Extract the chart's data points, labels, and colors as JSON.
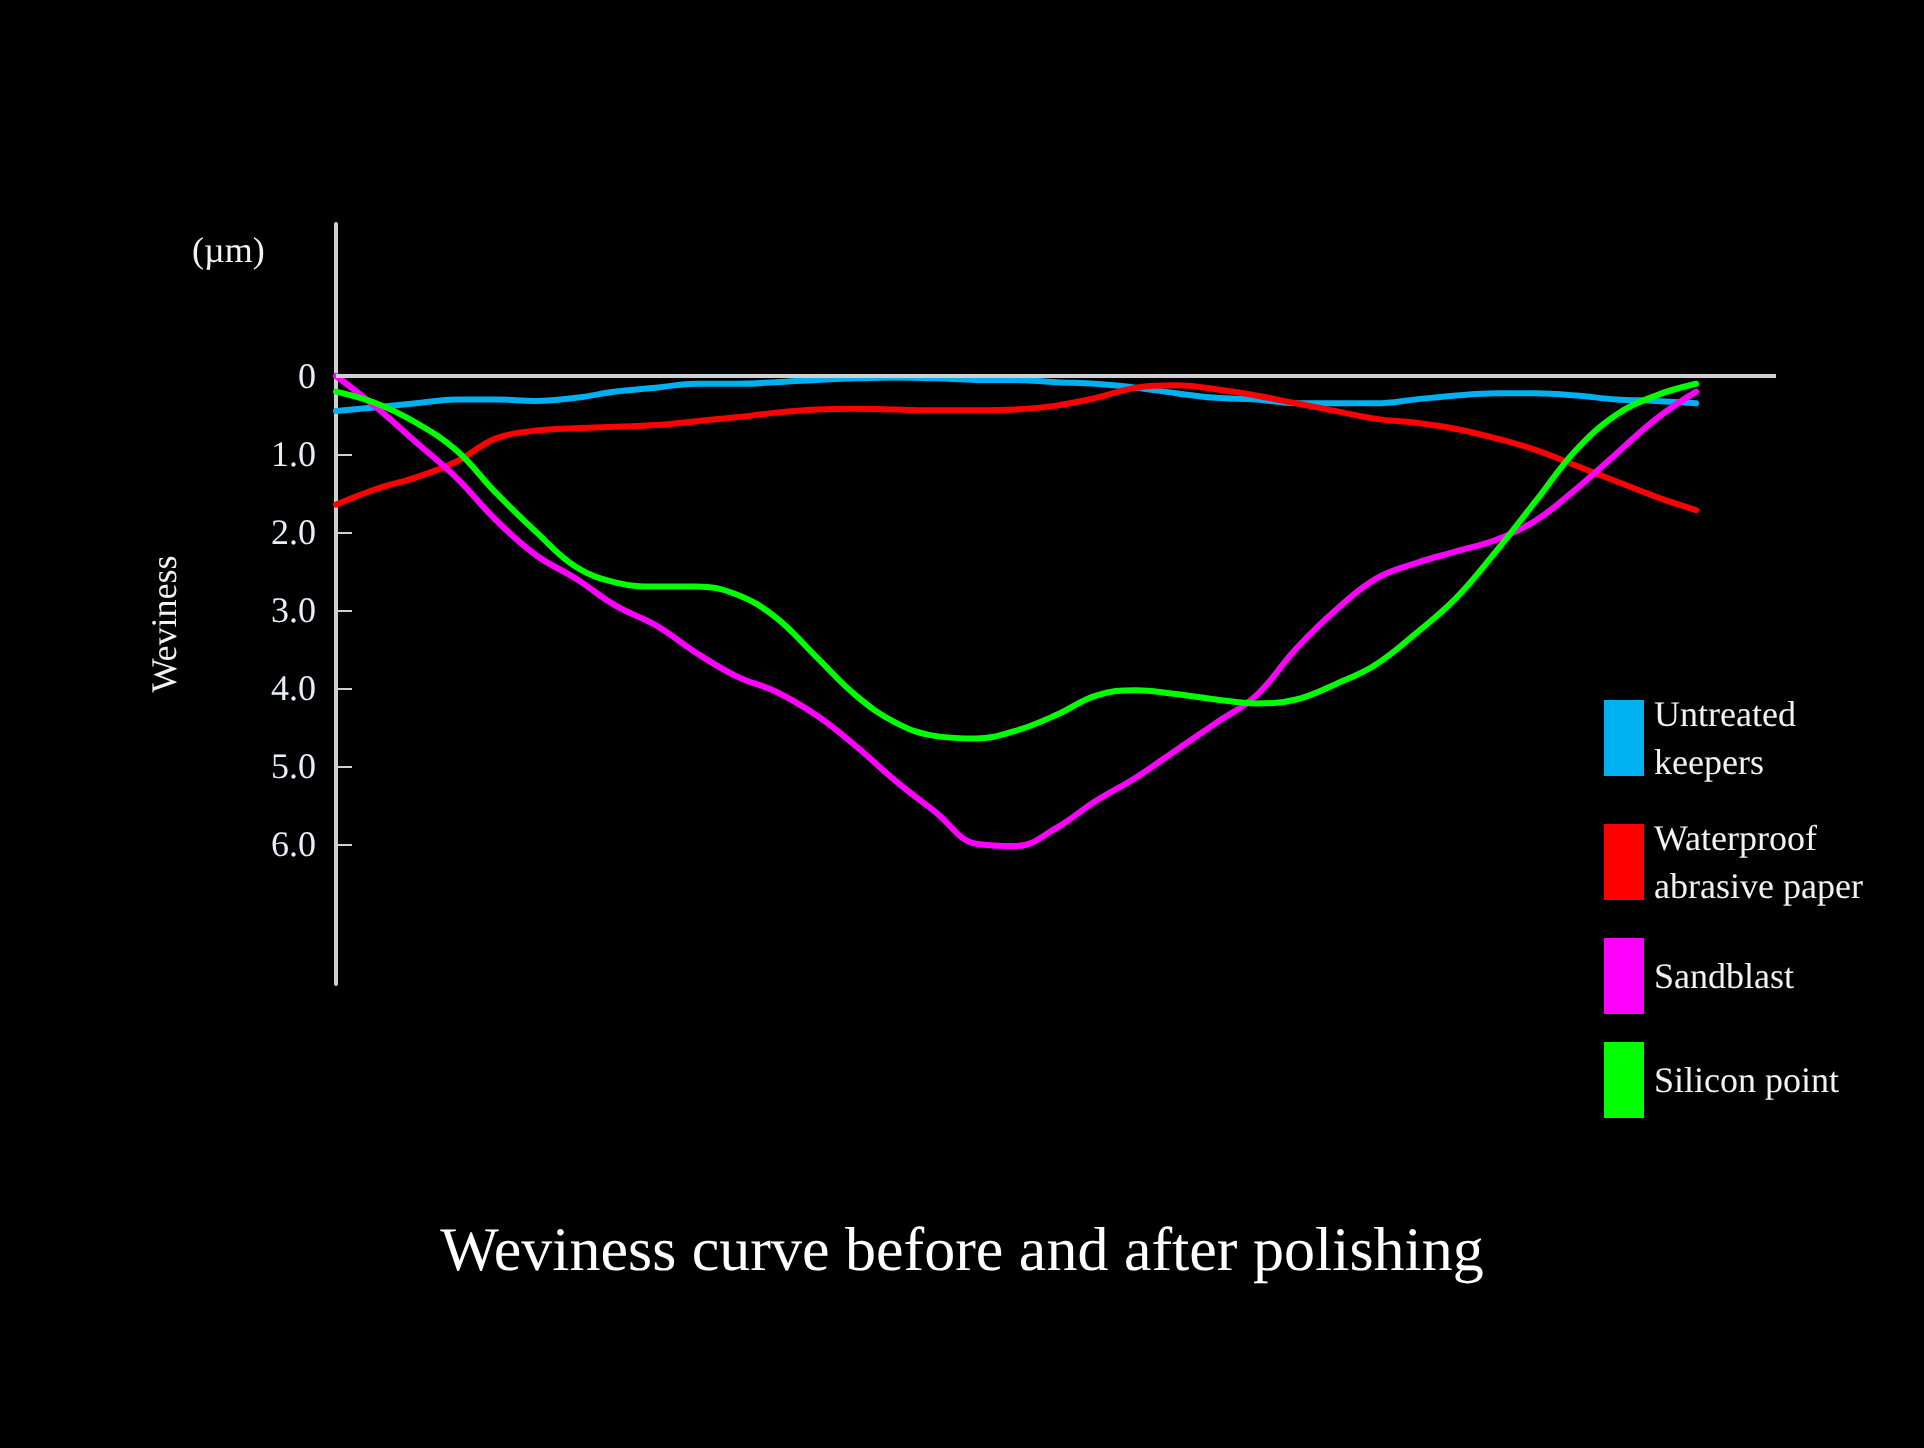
{
  "chart_data": {
    "type": "line",
    "title": "Weviness curve before and after polishing",
    "ylabel": "Weviness",
    "annotations": [
      "(µm)"
    ],
    "categories": [
      null,
      null,
      null,
      null,
      null,
      null,
      null,
      null,
      null,
      null,
      null,
      null,
      null,
      null,
      null,
      null,
      null,
      null,
      null,
      null,
      null,
      null,
      null,
      null,
      null,
      null,
      null,
      null,
      null,
      null,
      null,
      null,
      null,
      null,
      null,
      null,
      null
    ],
    "ylim": [
      7.8,
      -1.95
    ],
    "yticks": [
      0,
      {
        "value": 1,
        "label": "1.0"
      },
      {
        "value": 2,
        "label": "2.0"
      },
      {
        "value": 3,
        "label": "3.0"
      },
      {
        "value": 4,
        "label": "4.0"
      },
      {
        "value": 5,
        "label": "5.0"
      },
      {
        "value": 6,
        "label": "6.0"
      }
    ],
    "tick_labels": "y",
    "grid": false,
    "ref_lines": [
      {
        "axis": "y",
        "value": 0,
        "color": "#cfcfcf"
      }
    ],
    "legend": "right",
    "marker": "none",
    "line_style": "solid",
    "series": [
      {
        "name": "Untreated keepers",
        "color": "#00b0f0",
        "values": [
          0.45,
          0.4,
          0.35,
          0.3,
          0.3,
          0.32,
          0.28,
          0.2,
          0.15,
          0.1,
          0.1,
          0.08,
          0.05,
          0.03,
          0.02,
          0.03,
          0.05,
          0.05,
          0.08,
          0.1,
          0.15,
          0.22,
          0.28,
          0.3,
          0.35,
          0.35,
          0.35,
          0.3,
          0.25,
          0.22,
          0.22,
          0.25,
          0.3,
          0.32,
          0.35,
          null,
          null
        ]
      },
      {
        "name": "Waterproof abrasive paper",
        "color": "#ff0000",
        "values": [
          1.65,
          1.45,
          1.3,
          1.1,
          0.8,
          0.7,
          0.67,
          0.65,
          0.63,
          0.58,
          0.53,
          0.47,
          0.43,
          0.42,
          0.43,
          0.44,
          0.44,
          0.43,
          0.38,
          0.28,
          0.15,
          0.12,
          0.17,
          0.25,
          0.35,
          0.45,
          0.55,
          0.6,
          0.68,
          0.8,
          0.95,
          1.15,
          1.35,
          1.55,
          1.72,
          null,
          null
        ]
      },
      {
        "name": "Sandblast",
        "color": "#ff00ff",
        "values": [
          0,
          0.4,
          0.85,
          1.3,
          1.85,
          2.3,
          2.6,
          2.95,
          3.2,
          3.55,
          3.85,
          4.05,
          4.35,
          4.75,
          5.2,
          5.6,
          6.0,
          6.03,
          5.8,
          5.45,
          5.15,
          4.8,
          4.45,
          4.1,
          3.5,
          3.0,
          2.6,
          2.4,
          2.25,
          2.1,
          1.85,
          1.45,
          1.0,
          0.55,
          0.2,
          null,
          null
        ]
      },
      {
        "name": "Silicon point",
        "color": "#00ff00",
        "values": [
          0.2,
          0.35,
          0.6,
          0.95,
          1.5,
          2.0,
          2.45,
          2.65,
          2.7,
          2.7,
          2.8,
          3.1,
          3.6,
          4.1,
          4.45,
          4.62,
          4.65,
          4.55,
          4.35,
          4.1,
          4.03,
          4.08,
          4.15,
          4.2,
          4.15,
          3.95,
          3.7,
          3.3,
          2.85,
          2.25,
          1.6,
          0.95,
          0.5,
          0.25,
          0.1,
          null,
          null
        ]
      }
    ]
  }
}
